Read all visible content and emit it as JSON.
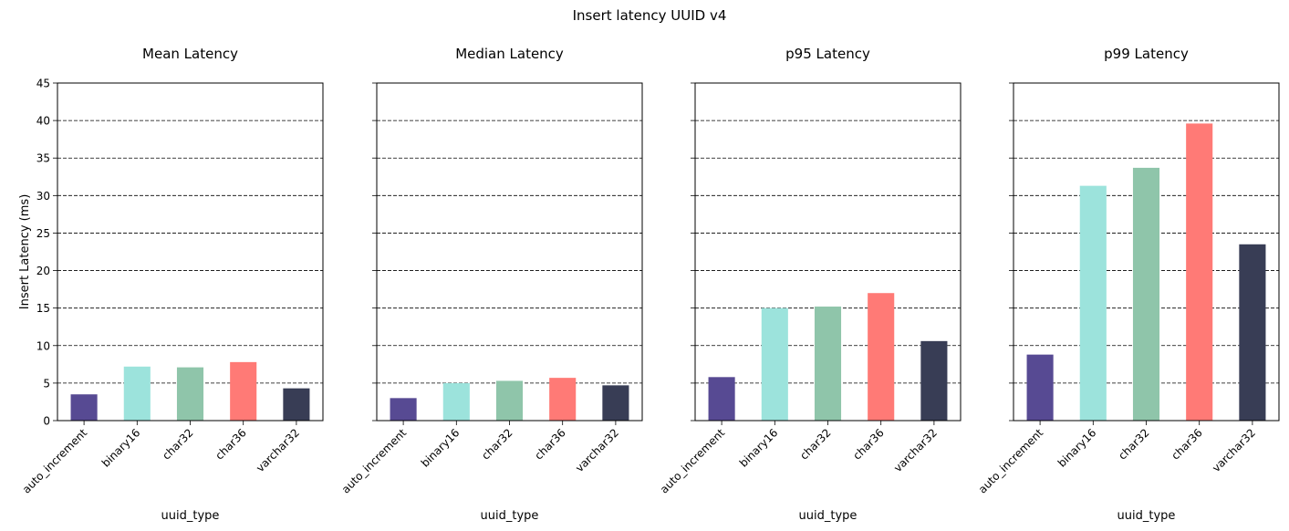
{
  "figure": {
    "title": "Insert latency UUID v4",
    "ylabel": "Insert Latency (ms)",
    "xlabel": "uuid_type"
  },
  "colors": [
    "#574a93",
    "#9ce3dc",
    "#8fc5aa",
    "#ff7a76",
    "#383d55"
  ],
  "chart_data": [
    {
      "type": "bar",
      "title": "Mean Latency",
      "categories": [
        "auto_increment",
        "binary16",
        "char32",
        "char36",
        "varchar32"
      ],
      "values": [
        3.5,
        7.2,
        7.1,
        7.8,
        4.3
      ],
      "xlabel": "uuid_type",
      "ylabel": "Insert Latency (ms)",
      "ylim": [
        0,
        45
      ],
      "yticks": [
        0,
        5,
        10,
        15,
        20,
        25,
        30,
        35,
        40,
        45
      ],
      "grid": "y-dashed"
    },
    {
      "type": "bar",
      "title": "Median Latency",
      "categories": [
        "auto_increment",
        "binary16",
        "char32",
        "char36",
        "varchar32"
      ],
      "values": [
        3.0,
        5.0,
        5.3,
        5.7,
        4.7
      ],
      "xlabel": "uuid_type",
      "ylim": [
        0,
        45
      ],
      "grid": "y-dashed"
    },
    {
      "type": "bar",
      "title": "p95 Latency",
      "categories": [
        "auto_increment",
        "binary16",
        "char32",
        "char36",
        "varchar32"
      ],
      "values": [
        5.8,
        15.0,
        15.2,
        17.0,
        10.6
      ],
      "xlabel": "uuid_type",
      "ylim": [
        0,
        45
      ],
      "grid": "y-dashed"
    },
    {
      "type": "bar",
      "title": "p99 Latency",
      "categories": [
        "auto_increment",
        "binary16",
        "char32",
        "char36",
        "varchar32"
      ],
      "values": [
        8.8,
        31.3,
        33.7,
        39.6,
        23.5
      ],
      "xlabel": "uuid_type",
      "ylim": [
        0,
        45
      ],
      "grid": "y-dashed"
    }
  ]
}
